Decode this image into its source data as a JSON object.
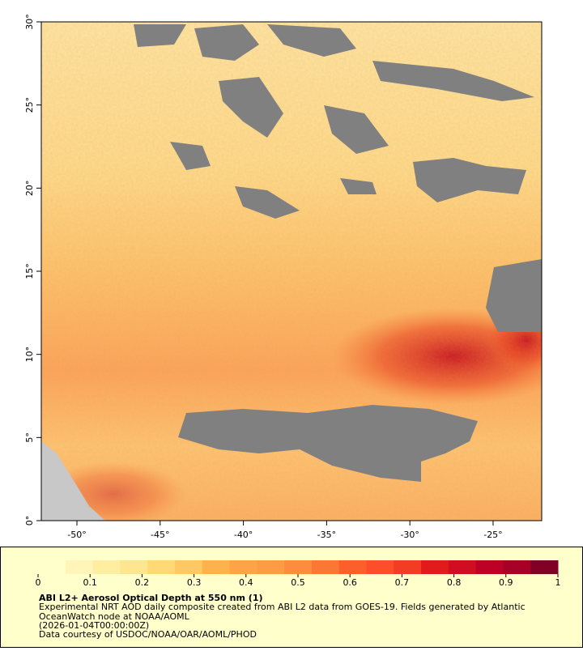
{
  "map": {
    "xlim": [
      -52.14,
      -22.08
    ],
    "ylim": [
      0,
      30
    ],
    "xticks": [
      {
        "value": -50,
        "label": "-50°"
      },
      {
        "value": -45,
        "label": "-45°"
      },
      {
        "value": -40,
        "label": "-40°"
      },
      {
        "value": -35,
        "label": "-35°"
      },
      {
        "value": -30,
        "label": "-30°"
      },
      {
        "value": -25,
        "label": "-25°"
      }
    ],
    "yticks": [
      {
        "value": 0,
        "label": "0°"
      },
      {
        "value": 5,
        "label": "5°"
      },
      {
        "value": 10,
        "label": "10°"
      },
      {
        "value": 15,
        "label": "15°"
      },
      {
        "value": 20,
        "label": "20°"
      },
      {
        "value": 25,
        "label": "25°"
      },
      {
        "value": 30,
        "label": "30°"
      }
    ]
  },
  "colorbar": {
    "lim": [
      0,
      1
    ],
    "ticks": [
      0,
      0.1,
      0.2,
      0.3,
      0.4,
      0.5,
      0.6,
      0.7,
      0.8,
      0.9,
      1
    ],
    "colors": [
      "#ffffcc",
      "#fff5b8",
      "#ffeda0",
      "#fee58f",
      "#fed976",
      "#fec965",
      "#feb24c",
      "#fea446",
      "#fd9d43",
      "#fd8d3c",
      "#fc7634",
      "#fc5e2c",
      "#fc4e2a",
      "#f23c24",
      "#e31a1c",
      "#d00d21",
      "#bd0026",
      "#a60026",
      "#800026"
    ]
  },
  "legend": {
    "title": "ABI L2+ Aerosol Optical Depth at 550 nm (1)",
    "lines": [
      "Experimental NRT AOD daily composite created from ABI L2 data from GOES-19. Fields generated by Atlantic",
      "OceanWatch node at NOAA/AOML",
      "(2026-01-04T00:00:00Z)",
      "Data courtesy of USDOC/NOAA/OAR/AOML/PHOD"
    ]
  }
}
